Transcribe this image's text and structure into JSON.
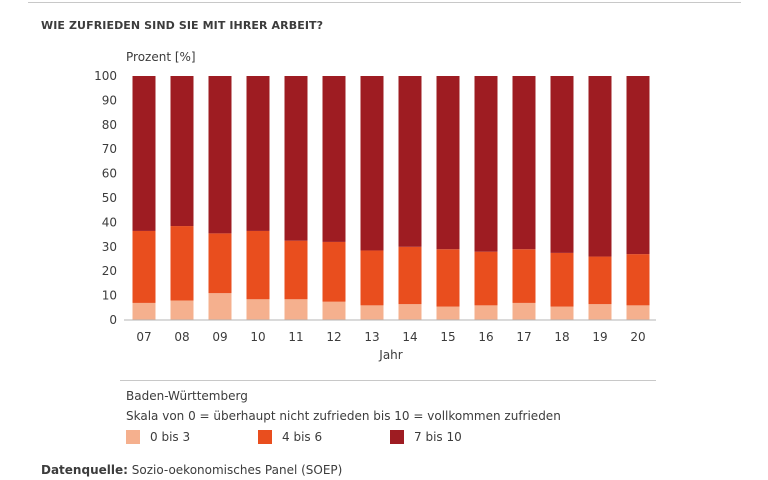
{
  "title": "WIE ZUFRIEDEN SIND SIE MIT IHRER ARBEIT?",
  "region": "Baden-Württemberg",
  "scale_note": "Skala von 0 = überhaupt nicht zufrieden bis 10 = vollkommen zufrieden",
  "source_label": "Datenquelle:",
  "source_text": "Sozio-oekonomisches Panel (SOEP)",
  "chart_data": {
    "type": "bar",
    "stacked": true,
    "ylabel": "Prozent [%]",
    "xlabel": "Jahr",
    "ylim": [
      0,
      100
    ],
    "yticks": [
      0,
      10,
      20,
      30,
      40,
      50,
      60,
      70,
      80,
      90,
      100
    ],
    "categories": [
      "07",
      "08",
      "09",
      "10",
      "11",
      "12",
      "13",
      "14",
      "15",
      "16",
      "17",
      "18",
      "19",
      "20"
    ],
    "series": [
      {
        "name": "0 bis 3",
        "color": "#f5b08e",
        "values": [
          7,
          8,
          11,
          8.5,
          8.5,
          7.5,
          6,
          6.5,
          5.5,
          6,
          7,
          5.5,
          6.5,
          6
        ]
      },
      {
        "name": "4 bis 6",
        "color": "#e94e1e",
        "values": [
          29.5,
          30.5,
          24.5,
          28,
          24,
          24.5,
          22.5,
          23.5,
          23.5,
          22,
          22,
          22,
          19.5,
          21
        ]
      },
      {
        "name": "7 bis 10",
        "color": "#9e1c22",
        "values": [
          63.5,
          61.5,
          64.5,
          63.5,
          67.5,
          68,
          71.5,
          70,
          71,
          72,
          71,
          72.5,
          74,
          73
        ]
      }
    ]
  }
}
